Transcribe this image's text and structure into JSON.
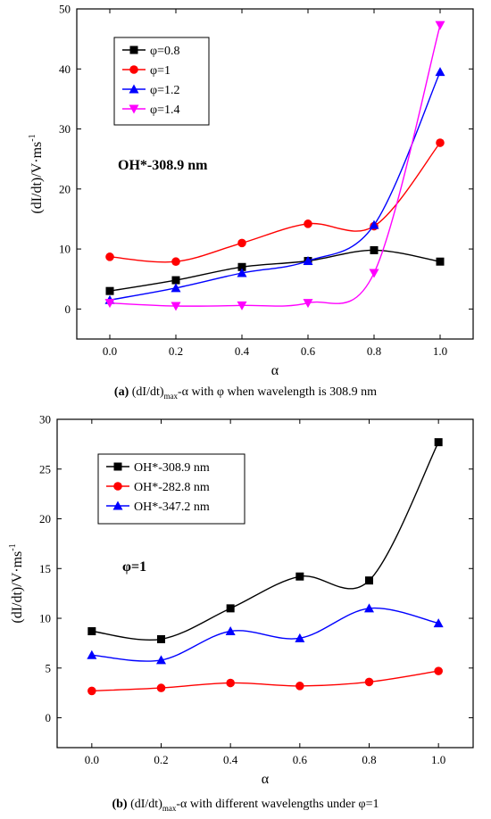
{
  "chart_data": [
    {
      "type": "line",
      "panel": "a",
      "xlabel": "α",
      "ylabel": "(dI/dt)/V·ms-1",
      "ylabel_main": "(dI/dt)/V·ms",
      "ylabel_sup": "-1",
      "annotation": "OH*-308.9 nm",
      "xlim": [
        -0.1,
        1.1
      ],
      "ylim": [
        -5,
        50
      ],
      "x_ticks": [
        "0.0",
        "0.2",
        "0.4",
        "0.6",
        "0.8",
        "1.0"
      ],
      "y_ticks": [
        "0",
        "10",
        "20",
        "30",
        "40",
        "50"
      ],
      "grid": false,
      "legend_position": "top-left",
      "caption": {
        "letter": "(a)",
        "pre": " (dI/dt)",
        "sub": "max",
        "post": "-α with φ when wavelength is 308.9 nm"
      },
      "series": [
        {
          "name": "φ=0.8",
          "color": "#000000",
          "marker": "square",
          "x": [
            0,
            0.2,
            0.4,
            0.6,
            0.8,
            1.0
          ],
          "values": [
            3.0,
            4.8,
            7.0,
            8.0,
            9.8,
            7.9
          ]
        },
        {
          "name": "φ=1",
          "color": "#ff0000",
          "marker": "circle",
          "x": [
            0,
            0.2,
            0.4,
            0.6,
            0.8,
            1.0
          ],
          "values": [
            8.7,
            7.9,
            11.0,
            14.2,
            13.8,
            27.7
          ]
        },
        {
          "name": "φ=1.2",
          "color": "#0000ff",
          "marker": "triangle-up",
          "x": [
            0,
            0.2,
            0.4,
            0.6,
            0.8,
            1.0
          ],
          "values": [
            1.5,
            3.5,
            6.0,
            8.0,
            14.0,
            39.5
          ]
        },
        {
          "name": "φ=1.4",
          "color": "#ff00ff",
          "marker": "triangle-down",
          "x": [
            0,
            0.2,
            0.4,
            0.6,
            0.8,
            1.0
          ],
          "values": [
            1.0,
            0.5,
            0.6,
            1.0,
            6.0,
            47.3
          ]
        }
      ]
    },
    {
      "type": "line",
      "panel": "b",
      "xlabel": "α",
      "ylabel": "(dI/dt)/V·ms-1",
      "ylabel_main": "(dI/dt)/V·ms",
      "ylabel_sup": "-1",
      "annotation": "φ=1",
      "xlim": [
        -0.1,
        1.1
      ],
      "ylim": [
        -3,
        30
      ],
      "x_ticks": [
        "0.0",
        "0.2",
        "0.4",
        "0.6",
        "0.8",
        "1.0"
      ],
      "y_ticks": [
        "0",
        "5",
        "10",
        "15",
        "20",
        "25",
        "30"
      ],
      "grid": false,
      "legend_position": "top-left",
      "caption": {
        "letter": "(b)",
        "pre": " (dI/dt)",
        "sub": "max",
        "post": "-α with different wavelengths under φ=1"
      },
      "series": [
        {
          "name": "OH*-308.9 nm",
          "color": "#000000",
          "marker": "square",
          "x": [
            0,
            0.2,
            0.4,
            0.6,
            0.8,
            1.0
          ],
          "values": [
            8.7,
            7.9,
            11.0,
            14.2,
            13.8,
            27.7
          ]
        },
        {
          "name": "OH*-282.8 nm",
          "color": "#ff0000",
          "marker": "circle",
          "x": [
            0,
            0.2,
            0.4,
            0.6,
            0.8,
            1.0
          ],
          "values": [
            2.7,
            3.0,
            3.5,
            3.2,
            3.6,
            4.7
          ]
        },
        {
          "name": "OH*-347.2 nm",
          "color": "#0000ff",
          "marker": "triangle-up",
          "x": [
            0,
            0.2,
            0.4,
            0.6,
            0.8,
            1.0
          ],
          "values": [
            6.3,
            5.8,
            8.7,
            8.0,
            11.0,
            9.5
          ]
        }
      ]
    }
  ]
}
